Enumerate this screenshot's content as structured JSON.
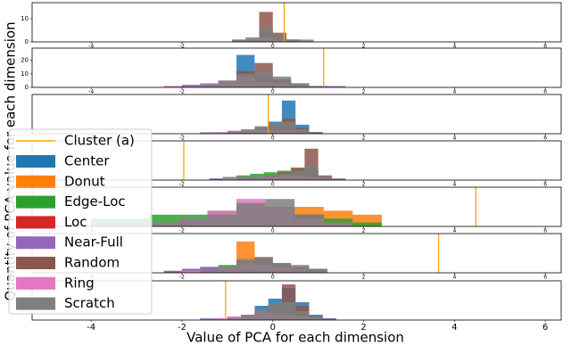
{
  "chart_data": {
    "type": "histogram-panels",
    "xlabel": "Value of PCA for each dimension",
    "ylabel": "Quantity of PCA value for each dimension",
    "xlim": [
      -5.3,
      6.35
    ],
    "xticks": [
      -4,
      -2,
      0,
      2,
      4,
      6
    ],
    "cluster_label": "Cluster (a)",
    "cluster_color": "#ffa500",
    "series_info": [
      {
        "name": "Center",
        "color": "#1f77b4"
      },
      {
        "name": "Donut",
        "color": "#ff7f0e"
      },
      {
        "name": "Edge-Loc",
        "color": "#2ca02c"
      },
      {
        "name": "Loc",
        "color": "#d62728"
      },
      {
        "name": "Near-Full",
        "color": "#9467bd"
      },
      {
        "name": "Random",
        "color": "#8c564b"
      },
      {
        "name": "Ring",
        "color": "#e377c2"
      },
      {
        "name": "Scratch",
        "color": "#7f7f7f"
      }
    ],
    "panels": [
      {
        "ylim": [
          0,
          17
        ],
        "yticks": [
          0,
          10
        ],
        "cluster_x": 0.25,
        "bins": [
          -1.2,
          -0.9,
          -0.6,
          -0.3,
          0,
          0.3,
          0.6,
          0.9,
          1.2,
          1.5,
          1.8
        ],
        "counts": [
          [
            0,
            0,
            1,
            4,
            3,
            1,
            0,
            0,
            0,
            0
          ],
          [
            0,
            0,
            0,
            2,
            1,
            1,
            0,
            0,
            0,
            0
          ],
          [
            0,
            1,
            1,
            5,
            2,
            1,
            0,
            0,
            0,
            0
          ],
          [
            0,
            0,
            1,
            3,
            2,
            0,
            0,
            0,
            0,
            0
          ],
          [
            0,
            0,
            0,
            1,
            1,
            0,
            0,
            0,
            0,
            0
          ],
          [
            0,
            0,
            1,
            13,
            4,
            1,
            0,
            0,
            0,
            0
          ],
          [
            0,
            0,
            1,
            2,
            1,
            0,
            0,
            0,
            0,
            0
          ],
          [
            0,
            1,
            2,
            6,
            3,
            1,
            1,
            0,
            0,
            0
          ]
        ]
      },
      {
        "ylim": [
          0,
          29
        ],
        "yticks": [
          0,
          10,
          20
        ],
        "cluster_x": 1.12,
        "bins": [
          -2.4,
          -2,
          -1.6,
          -1.2,
          -0.8,
          -0.4,
          0,
          0.4,
          0.8,
          1.2,
          1.6
        ],
        "counts": [
          [
            0,
            0,
            1,
            5,
            24,
            8,
            6,
            3,
            1,
            0
          ],
          [
            0,
            0,
            0,
            1,
            3,
            2,
            3,
            1,
            0,
            0
          ],
          [
            0,
            1,
            2,
            4,
            10,
            6,
            5,
            2,
            1,
            0
          ],
          [
            0,
            0,
            1,
            2,
            4,
            3,
            2,
            1,
            0,
            0
          ],
          [
            1,
            2,
            3,
            4,
            6,
            3,
            2,
            1,
            1,
            1
          ],
          [
            0,
            0,
            1,
            4,
            12,
            18,
            6,
            2,
            1,
            0
          ],
          [
            1,
            1,
            2,
            5,
            8,
            4,
            3,
            2,
            1,
            0
          ],
          [
            0,
            1,
            2,
            5,
            10,
            12,
            8,
            3,
            1,
            0
          ]
        ]
      },
      {
        "ylim": [
          0,
          26
        ],
        "cluster_x": -0.1,
        "bins": [
          -1.6,
          -1.3,
          -1,
          -0.7,
          -0.4,
          -0.1,
          0.2,
          0.5,
          0.8,
          1.1,
          1.4
        ],
        "counts": [
          [
            0,
            0,
            1,
            2,
            3,
            8,
            22,
            6,
            1,
            0
          ],
          [
            0,
            0,
            0,
            1,
            1,
            2,
            3,
            1,
            0,
            0
          ],
          [
            0,
            1,
            1,
            2,
            4,
            5,
            6,
            3,
            1,
            0
          ],
          [
            0,
            0,
            0,
            1,
            2,
            3,
            3,
            1,
            0,
            0
          ],
          [
            1,
            1,
            2,
            2,
            3,
            2,
            2,
            1,
            1,
            0
          ],
          [
            0,
            0,
            1,
            2,
            4,
            6,
            10,
            4,
            1,
            0
          ],
          [
            0,
            1,
            1,
            2,
            3,
            2,
            2,
            1,
            0,
            0
          ],
          [
            0,
            0,
            1,
            3,
            5,
            7,
            8,
            3,
            1,
            0
          ]
        ]
      },
      {
        "ylim": [
          0,
          25
        ],
        "cluster_x": -1.96,
        "bins": [
          -1.4,
          -1.1,
          -0.8,
          -0.5,
          -0.2,
          0.1,
          0.4,
          0.7,
          1,
          1.3,
          1.6
        ],
        "counts": [
          [
            0,
            0,
            1,
            1,
            2,
            3,
            5,
            8,
            2,
            0
          ],
          [
            0,
            0,
            0,
            1,
            1,
            2,
            3,
            4,
            1,
            0
          ],
          [
            1,
            2,
            3,
            4,
            5,
            6,
            7,
            6,
            2,
            1
          ],
          [
            0,
            0,
            1,
            1,
            2,
            2,
            3,
            3,
            1,
            0
          ],
          [
            1,
            1,
            2,
            2,
            2,
            3,
            2,
            2,
            1,
            1
          ],
          [
            0,
            0,
            1,
            2,
            3,
            5,
            8,
            20,
            3,
            0
          ],
          [
            0,
            1,
            1,
            2,
            2,
            3,
            3,
            2,
            1,
            0
          ],
          [
            0,
            0,
            1,
            2,
            3,
            4,
            6,
            9,
            2,
            0
          ]
        ]
      },
      {
        "ylim": [
          0,
          10
        ],
        "cluster_x": 4.47,
        "bins": [
          -4,
          -3.36,
          -2.72,
          -2.08,
          -1.44,
          -0.8,
          -0.16,
          0.48,
          1.12,
          1.76,
          2.4
        ],
        "counts": [
          [
            0,
            0,
            0,
            1,
            2,
            3,
            4,
            2,
            1,
            0
          ],
          [
            0,
            0,
            0,
            0,
            1,
            2,
            4,
            5,
            4,
            3
          ],
          [
            2,
            2,
            3,
            3,
            4,
            5,
            5,
            3,
            2,
            1
          ],
          [
            0,
            0,
            0,
            1,
            1,
            2,
            2,
            1,
            0,
            0
          ],
          [
            1,
            1,
            1,
            2,
            3,
            4,
            3,
            2,
            1,
            0
          ],
          [
            0,
            0,
            1,
            1,
            2,
            3,
            5,
            3,
            1,
            0
          ],
          [
            0,
            0,
            1,
            2,
            4,
            7,
            5,
            2,
            1,
            0
          ],
          [
            0,
            0,
            1,
            2,
            3,
            6,
            7,
            3,
            1,
            0
          ]
        ]
      },
      {
        "ylim": [
          0,
          20
        ],
        "cluster_x": 3.65,
        "bins": [
          -2.4,
          -2,
          -1.6,
          -1.2,
          -0.8,
          -0.4,
          0,
          0.4,
          0.8,
          1.2,
          1.6
        ],
        "counts": [
          [
            0,
            0,
            1,
            3,
            5,
            6,
            4,
            3,
            2,
            0
          ],
          [
            0,
            0,
            1,
            3,
            16,
            8,
            4,
            2,
            1,
            0
          ],
          [
            1,
            2,
            3,
            4,
            5,
            6,
            5,
            3,
            1,
            0
          ],
          [
            0,
            0,
            1,
            1,
            2,
            2,
            2,
            1,
            0,
            0
          ],
          [
            1,
            2,
            3,
            3,
            4,
            3,
            2,
            2,
            1,
            0
          ],
          [
            0,
            0,
            1,
            3,
            6,
            8,
            4,
            3,
            2,
            0
          ],
          [
            0,
            1,
            1,
            3,
            5,
            4,
            3,
            2,
            1,
            0
          ],
          [
            0,
            0,
            1,
            3,
            7,
            8,
            5,
            4,
            2,
            0
          ]
        ]
      },
      {
        "ylim": [
          0,
          22
        ],
        "cluster_x": -1.04,
        "bins": [
          -1.6,
          -1.3,
          -1,
          -0.7,
          -0.4,
          -0.1,
          0.2,
          0.5,
          0.8,
          1.1,
          1.4
        ],
        "counts": [
          [
            0,
            0,
            1,
            3,
            8,
            12,
            18,
            10,
            3,
            0
          ],
          [
            0,
            0,
            0,
            1,
            2,
            3,
            4,
            3,
            1,
            0
          ],
          [
            0,
            1,
            1,
            2,
            4,
            5,
            6,
            4,
            2,
            1
          ],
          [
            0,
            0,
            0,
            1,
            2,
            3,
            3,
            2,
            1,
            0
          ],
          [
            1,
            1,
            2,
            2,
            3,
            3,
            3,
            2,
            1,
            1
          ],
          [
            0,
            0,
            1,
            2,
            4,
            8,
            20,
            8,
            2,
            0
          ],
          [
            0,
            1,
            2,
            3,
            5,
            4,
            3,
            2,
            1,
            0
          ],
          [
            0,
            0,
            1,
            3,
            6,
            9,
            10,
            5,
            2,
            0
          ]
        ]
      }
    ]
  }
}
